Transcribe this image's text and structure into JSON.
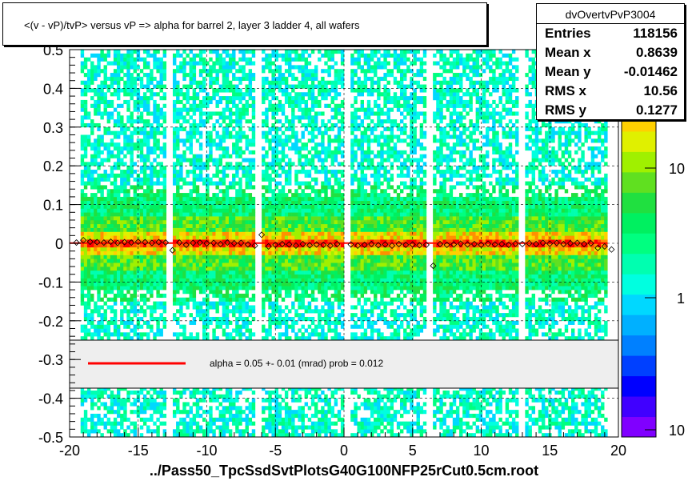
{
  "header": {
    "title": "<(v - vP)/tvP> versus   vP => alpha for barrel 2, layer 3 ladder 4, all wafers"
  },
  "stats": {
    "name": "dvOvertvPvP3004",
    "rows": [
      {
        "label": "Entries",
        "value": "118156"
      },
      {
        "label": "Mean x",
        "value": "0.8639"
      },
      {
        "label": "Mean y",
        "value": "-0.01462"
      },
      {
        "label": "RMS x",
        "value": "10.56"
      },
      {
        "label": "RMS y",
        "value": "0.1277"
      }
    ]
  },
  "fit": {
    "text": "alpha =    0.05 +-  0.01 (mrad) prob = 0.012",
    "line_color": "#ff0000"
  },
  "footer": {
    "xlabel": "../Pass50_TpcSsdSvtPlotsG40G100NFP25rCut0.5cm.root"
  },
  "colors": {
    "fit_line": "#ff0000",
    "palette": [
      "#8000ff",
      "#4000ff",
      "#0000ff",
      "#0040ff",
      "#0080ff",
      "#00b0ff",
      "#00d8ff",
      "#00ffe0",
      "#00ffb0",
      "#00ff80",
      "#00f060",
      "#20e040",
      "#60e020",
      "#a0f000",
      "#e0f000",
      "#ffd000",
      "#ff9000",
      "#ff5000",
      "#ff0000"
    ]
  },
  "chart_data": {
    "type": "heatmap",
    "title": "<(v - vP)/tvP> versus   vP => alpha for barrel 2, layer 3 ladder 4, all wafers",
    "xlabel": "../Pass50_TpcSsdSvtPlotsG40G100NFP25rCut0.5cm.root",
    "ylabel": "",
    "xlim": [
      -20,
      20
    ],
    "ylim": [
      -0.5,
      0.5
    ],
    "log_z": true,
    "grid": true,
    "x_ticks": [
      -20,
      -15,
      -10,
      -5,
      0,
      5,
      10,
      15,
      20
    ],
    "x_tick_labels": [
      "-20",
      "-15",
      "-10",
      "-5",
      "0",
      "5",
      "10",
      "15",
      "20"
    ],
    "y_ticks": [
      -0.5,
      -0.4,
      -0.3,
      -0.2,
      -0.1,
      0,
      0.1,
      0.2,
      0.3,
      0.4,
      0.5
    ],
    "y_tick_labels": [
      "-0.5",
      "-0.4",
      "-0.3",
      "-0.2",
      "-0.1",
      "0",
      "0.1",
      "0.2",
      "0.3",
      "0.4",
      "0.5"
    ],
    "z_tick_labels": [
      "10",
      "1",
      "10"
    ],
    "x_data_range": [
      -19.2,
      19.2
    ],
    "gaps_x": [
      -12.8,
      -6.2,
      0.2,
      6.3,
      12.9
    ],
    "fit_line": {
      "x": [
        -20,
        19.2
      ],
      "y": [
        0.0005,
        0.0005
      ]
    },
    "profile_points": [
      {
        "x": -19.5,
        "y": 0.002
      },
      {
        "x": -19.0,
        "y": 0.008
      },
      {
        "x": -18.5,
        "y": 0.004
      },
      {
        "x": -18.0,
        "y": 0.003
      },
      {
        "x": -17.5,
        "y": 0.002
      },
      {
        "x": -17.0,
        "y": 0.004
      },
      {
        "x": -16.5,
        "y": 0.001
      },
      {
        "x": -16.0,
        "y": 0.003
      },
      {
        "x": -15.5,
        "y": 0.002
      },
      {
        "x": -15.0,
        "y": 0.004
      },
      {
        "x": -14.5,
        "y": 0.003
      },
      {
        "x": -14.0,
        "y": 0.001
      },
      {
        "x": -13.5,
        "y": 0.003
      },
      {
        "x": -13.0,
        "y": 0.002
      },
      {
        "x": -12.5,
        "y": -0.018
      },
      {
        "x": -12.0,
        "y": 0.002
      },
      {
        "x": -11.5,
        "y": -0.004
      },
      {
        "x": -11.0,
        "y": 0.001
      },
      {
        "x": -10.5,
        "y": 0.002
      },
      {
        "x": -10.0,
        "y": 0.0
      },
      {
        "x": -9.5,
        "y": 0.001
      },
      {
        "x": -9.0,
        "y": -0.002
      },
      {
        "x": -8.5,
        "y": 0.002
      },
      {
        "x": -8.0,
        "y": 0.0
      },
      {
        "x": -7.5,
        "y": 0.001
      },
      {
        "x": -7.0,
        "y": -0.003
      },
      {
        "x": -6.5,
        "y": -0.006
      },
      {
        "x": -6.0,
        "y": 0.022
      },
      {
        "x": -5.5,
        "y": -0.008
      },
      {
        "x": -5.0,
        "y": -0.004
      },
      {
        "x": -4.5,
        "y": -0.002
      },
      {
        "x": -4.0,
        "y": -0.003
      },
      {
        "x": -3.5,
        "y": -0.006
      },
      {
        "x": -3.0,
        "y": -0.002
      },
      {
        "x": -2.5,
        "y": -0.005
      },
      {
        "x": -2.0,
        "y": -0.003
      },
      {
        "x": -1.5,
        "y": -0.004
      },
      {
        "x": -1.0,
        "y": -0.006
      },
      {
        "x": -0.5,
        "y": -0.002
      },
      {
        "x": 0.5,
        "y": -0.003
      },
      {
        "x": 1.0,
        "y": -0.006
      },
      {
        "x": 1.5,
        "y": -0.004
      },
      {
        "x": 2.0,
        "y": -0.002
      },
      {
        "x": 2.5,
        "y": -0.005
      },
      {
        "x": 3.0,
        "y": -0.003
      },
      {
        "x": 3.5,
        "y": -0.006
      },
      {
        "x": 4.0,
        "y": -0.002
      },
      {
        "x": 4.5,
        "y": -0.004
      },
      {
        "x": 5.0,
        "y": -0.003
      },
      {
        "x": 5.5,
        "y": -0.005
      },
      {
        "x": 6.0,
        "y": -0.004
      },
      {
        "x": 6.5,
        "y": -0.058
      },
      {
        "x": 7.0,
        "y": -0.002
      },
      {
        "x": 7.5,
        "y": -0.004
      },
      {
        "x": 8.0,
        "y": -0.003
      },
      {
        "x": 8.5,
        "y": -0.001
      },
      {
        "x": 9.0,
        "y": -0.003
      },
      {
        "x": 9.5,
        "y": -0.002
      },
      {
        "x": 10.0,
        "y": -0.004
      },
      {
        "x": 10.5,
        "y": -0.001
      },
      {
        "x": 11.0,
        "y": -0.003
      },
      {
        "x": 11.5,
        "y": -0.002
      },
      {
        "x": 12.0,
        "y": -0.004
      },
      {
        "x": 12.5,
        "y": -0.001
      },
      {
        "x": 13.0,
        "y": -0.002
      },
      {
        "x": 13.5,
        "y": 0.0
      },
      {
        "x": 14.0,
        "y": -0.002
      },
      {
        "x": 14.5,
        "y": 0.001
      },
      {
        "x": 15.0,
        "y": -0.001
      },
      {
        "x": 15.5,
        "y": 0.001
      },
      {
        "x": 16.0,
        "y": -0.002
      },
      {
        "x": 16.5,
        "y": 0.0
      },
      {
        "x": 17.0,
        "y": 0.001
      },
      {
        "x": 17.5,
        "y": -0.002
      },
      {
        "x": 18.0,
        "y": 0.0
      },
      {
        "x": 18.5,
        "y": -0.012
      },
      {
        "x": 19.0,
        "y": -0.008
      },
      {
        "x": 19.5,
        "y": -0.016
      }
    ]
  }
}
